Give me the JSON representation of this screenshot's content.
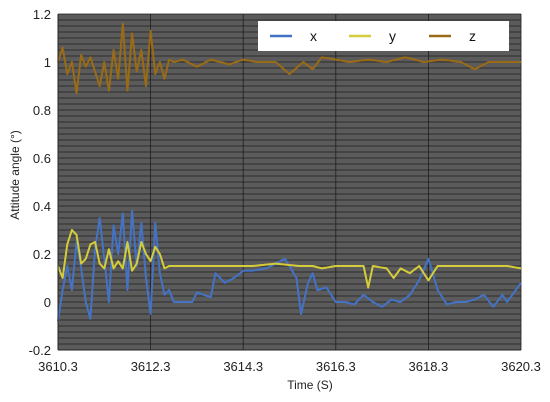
{
  "chart_data": {
    "type": "line",
    "xlabel": "Time  (S)",
    "ylabel": "Attitude angle  (°)",
    "xlim": [
      3610.3,
      3620.3
    ],
    "ylim": [
      -0.2,
      1.2
    ],
    "xticks": [
      "3610.3",
      "3612.3",
      "3614.3",
      "3616.3",
      "3618.3",
      "3620.3"
    ],
    "yticks": [
      "-0.2",
      "0",
      "0.2",
      "0.4",
      "0.6",
      "0.8",
      "1",
      "1.2"
    ],
    "grid": true,
    "legend_position": "top-right",
    "series": [
      {
        "name": "x",
        "color": "#4472c4",
        "points": [
          [
            3610.3,
            -0.08
          ],
          [
            3610.4,
            0.05
          ],
          [
            3610.5,
            0.15
          ],
          [
            3610.6,
            0.05
          ],
          [
            3610.7,
            0.25
          ],
          [
            3610.8,
            0.14
          ],
          [
            3610.9,
            0.0
          ],
          [
            3611.0,
            -0.07
          ],
          [
            3611.1,
            0.22
          ],
          [
            3611.2,
            0.35
          ],
          [
            3611.3,
            0.18
          ],
          [
            3611.4,
            0.0
          ],
          [
            3611.5,
            0.32
          ],
          [
            3611.6,
            0.2
          ],
          [
            3611.7,
            0.37
          ],
          [
            3611.8,
            0.05
          ],
          [
            3611.9,
            0.38
          ],
          [
            3612.0,
            0.15
          ],
          [
            3612.1,
            0.33
          ],
          [
            3612.2,
            0.1
          ],
          [
            3612.3,
            -0.05
          ],
          [
            3612.4,
            0.33
          ],
          [
            3612.5,
            0.12
          ],
          [
            3612.6,
            0.03
          ],
          [
            3612.7,
            0.05
          ],
          [
            3612.8,
            0.0
          ],
          [
            3613.0,
            0.0
          ],
          [
            3613.2,
            0.0
          ],
          [
            3613.3,
            0.04
          ],
          [
            3613.6,
            0.02
          ],
          [
            3613.7,
            0.12
          ],
          [
            3613.9,
            0.08
          ],
          [
            3614.1,
            0.1
          ],
          [
            3614.3,
            0.13
          ],
          [
            3614.5,
            0.13
          ],
          [
            3614.8,
            0.14
          ],
          [
            3615.0,
            0.16
          ],
          [
            3615.2,
            0.18
          ],
          [
            3615.3,
            0.15
          ],
          [
            3615.45,
            0.1
          ],
          [
            3615.55,
            -0.05
          ],
          [
            3615.7,
            0.08
          ],
          [
            3615.8,
            0.12
          ],
          [
            3615.9,
            0.05
          ],
          [
            3616.1,
            0.06
          ],
          [
            3616.3,
            0.0
          ],
          [
            3616.5,
            0.0
          ],
          [
            3616.7,
            -0.01
          ],
          [
            3616.9,
            0.03
          ],
          [
            3617.1,
            0.0
          ],
          [
            3617.3,
            -0.02
          ],
          [
            3617.5,
            0.01
          ],
          [
            3617.7,
            0.0
          ],
          [
            3617.9,
            0.03
          ],
          [
            3618.1,
            0.09
          ],
          [
            3618.3,
            0.18
          ],
          [
            3618.5,
            0.05
          ],
          [
            3618.7,
            -0.01
          ],
          [
            3618.9,
            0.0
          ],
          [
            3619.1,
            0.0
          ],
          [
            3619.3,
            0.01
          ],
          [
            3619.5,
            0.03
          ],
          [
            3619.7,
            -0.02
          ],
          [
            3619.9,
            0.03
          ],
          [
            3620.0,
            0.0
          ],
          [
            3620.3,
            0.08
          ]
        ]
      },
      {
        "name": "y",
        "color": "#d4cc3a",
        "points": [
          [
            3610.3,
            0.15
          ],
          [
            3610.4,
            0.1
          ],
          [
            3610.5,
            0.24
          ],
          [
            3610.6,
            0.3
          ],
          [
            3610.7,
            0.28
          ],
          [
            3610.8,
            0.16
          ],
          [
            3610.9,
            0.18
          ],
          [
            3611.0,
            0.24
          ],
          [
            3611.1,
            0.25
          ],
          [
            3611.2,
            0.16
          ],
          [
            3611.3,
            0.14
          ],
          [
            3611.4,
            0.22
          ],
          [
            3611.5,
            0.14
          ],
          [
            3611.6,
            0.17
          ],
          [
            3611.7,
            0.14
          ],
          [
            3611.8,
            0.25
          ],
          [
            3611.9,
            0.13
          ],
          [
            3612.0,
            0.16
          ],
          [
            3612.1,
            0.25
          ],
          [
            3612.2,
            0.2
          ],
          [
            3612.3,
            0.17
          ],
          [
            3612.4,
            0.23
          ],
          [
            3612.5,
            0.2
          ],
          [
            3612.6,
            0.14
          ],
          [
            3612.7,
            0.15
          ],
          [
            3612.8,
            0.15
          ],
          [
            3613.0,
            0.15
          ],
          [
            3613.5,
            0.15
          ],
          [
            3614.0,
            0.15
          ],
          [
            3614.5,
            0.15
          ],
          [
            3615.0,
            0.16
          ],
          [
            3615.5,
            0.15
          ],
          [
            3615.8,
            0.15
          ],
          [
            3616.0,
            0.14
          ],
          [
            3616.3,
            0.15
          ],
          [
            3616.7,
            0.15
          ],
          [
            3616.9,
            0.15
          ],
          [
            3617.0,
            0.06
          ],
          [
            3617.1,
            0.15
          ],
          [
            3617.4,
            0.14
          ],
          [
            3617.55,
            0.1
          ],
          [
            3617.7,
            0.14
          ],
          [
            3617.9,
            0.12
          ],
          [
            3618.1,
            0.15
          ],
          [
            3618.3,
            0.09
          ],
          [
            3618.5,
            0.15
          ],
          [
            3619.0,
            0.15
          ],
          [
            3619.5,
            0.15
          ],
          [
            3620.0,
            0.15
          ],
          [
            3620.3,
            0.14
          ]
        ]
      },
      {
        "name": "z",
        "color": "#9a6b16",
        "points": [
          [
            3610.3,
            1.0
          ],
          [
            3610.4,
            1.06
          ],
          [
            3610.5,
            0.95
          ],
          [
            3610.6,
            1.0
          ],
          [
            3610.7,
            0.87
          ],
          [
            3610.8,
            1.03
          ],
          [
            3610.9,
            0.98
          ],
          [
            3611.0,
            1.02
          ],
          [
            3611.1,
            0.96
          ],
          [
            3611.2,
            0.9
          ],
          [
            3611.3,
            1.0
          ],
          [
            3611.4,
            0.88
          ],
          [
            3611.5,
            1.05
          ],
          [
            3611.6,
            0.93
          ],
          [
            3611.7,
            1.16
          ],
          [
            3611.8,
            0.88
          ],
          [
            3611.9,
            1.12
          ],
          [
            3612.0,
            0.96
          ],
          [
            3612.1,
            1.05
          ],
          [
            3612.2,
            0.9
          ],
          [
            3612.3,
            1.13
          ],
          [
            3612.4,
            0.95
          ],
          [
            3612.5,
            1.0
          ],
          [
            3612.6,
            0.93
          ],
          [
            3612.7,
            1.01
          ],
          [
            3612.8,
            1.0
          ],
          [
            3613.0,
            1.01
          ],
          [
            3613.3,
            0.98
          ],
          [
            3613.6,
            1.01
          ],
          [
            3614.0,
            0.99
          ],
          [
            3614.3,
            1.01
          ],
          [
            3614.6,
            1.0
          ],
          [
            3615.0,
            1.0
          ],
          [
            3615.3,
            0.95
          ],
          [
            3615.6,
            1.0
          ],
          [
            3615.8,
            0.97
          ],
          [
            3616.0,
            1.02
          ],
          [
            3616.3,
            1.01
          ],
          [
            3616.6,
            1.0
          ],
          [
            3617.0,
            1.01
          ],
          [
            3617.4,
            1.0
          ],
          [
            3617.8,
            1.02
          ],
          [
            3618.2,
            1.0
          ],
          [
            3618.6,
            1.01
          ],
          [
            3619.0,
            1.0
          ],
          [
            3619.3,
            0.97
          ],
          [
            3619.6,
            1.0
          ],
          [
            3620.0,
            1.0
          ],
          [
            3620.3,
            1.0
          ]
        ]
      }
    ],
    "colors": {
      "plot_background": "#5b5b5b",
      "grid": "#1e1e1e",
      "axis": "#222222"
    }
  }
}
